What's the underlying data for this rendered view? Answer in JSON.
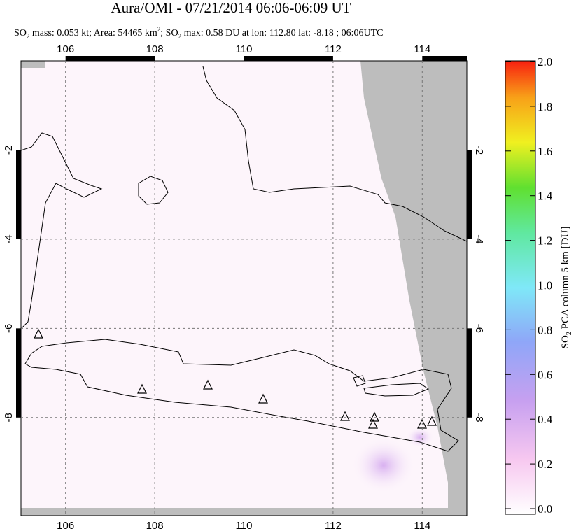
{
  "title": "Aura/OMI - 07/21/2014 06:06-06:09 UT",
  "subtitle": [
    "SO",
    "2",
    " mass: 0.053 kt; Area: 54465 km",
    "2",
    "; SO",
    "2",
    " max: 0.58 DU at lon: 112.80 lat: -8.18 ; 06:06UTC"
  ],
  "map": {
    "lonlim": [
      105,
      115
    ],
    "latlim": [
      0,
      -10.2
    ],
    "lonticks": [
      106,
      108,
      110,
      112,
      114
    ],
    "latticks": [
      -2,
      -4,
      -6,
      -8
    ]
  },
  "colorbar": {
    "label": [
      "SO",
      "2",
      " PCA column 5 km [DU]"
    ],
    "lim": [
      0,
      2
    ],
    "ticks": [
      {
        "value": 0,
        "label": "0.0"
      },
      {
        "value": 0.2,
        "label": "0.2"
      },
      {
        "value": 0.4,
        "label": "0.4"
      },
      {
        "value": 0.6,
        "label": "0.6"
      },
      {
        "value": 0.8,
        "label": "0.8"
      },
      {
        "value": 1,
        "label": "1.0"
      },
      {
        "value": 1.2,
        "label": "1.2"
      },
      {
        "value": 1.4,
        "label": "1.4"
      },
      {
        "value": 1.6,
        "label": "1.6"
      },
      {
        "value": 1.8,
        "label": "1.8"
      },
      {
        "value": 2,
        "label": "2.0"
      }
    ]
  }
}
